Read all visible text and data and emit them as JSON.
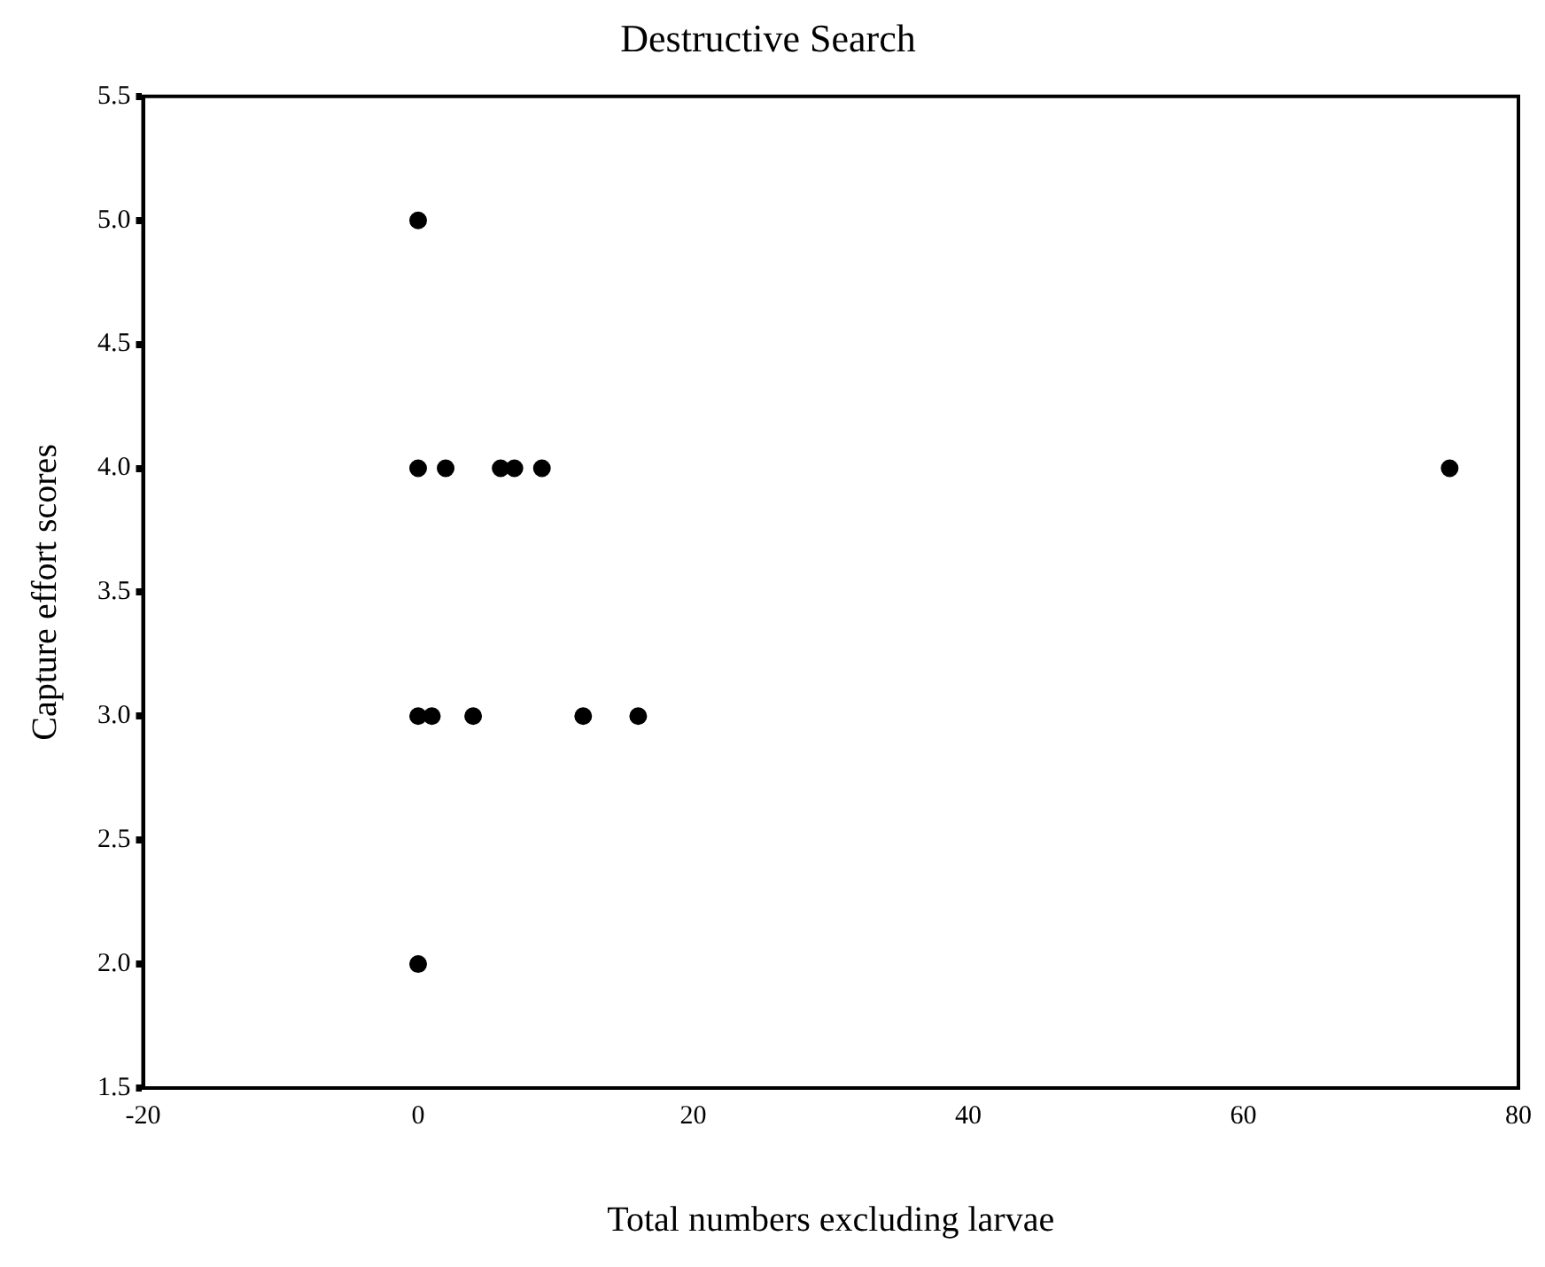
{
  "chart_data": {
    "type": "scatter",
    "title": "Destructive Search",
    "xlabel": "Total numbers excluding larvae",
    "ylabel": "Capture effort scores",
    "x": [
      0,
      0,
      2,
      6,
      7,
      9,
      75,
      0,
      1,
      4,
      12,
      16,
      0
    ],
    "values": [
      5,
      4,
      4,
      4,
      4,
      4,
      4,
      3,
      3,
      3,
      3,
      3,
      2
    ],
    "color": "#000000",
    "marker": "circle",
    "grid": false,
    "legend": false,
    "xlim": [
      -20,
      80
    ],
    "xticks": [
      -20,
      0,
      20,
      40,
      60,
      80
    ],
    "ylim": [
      1.5,
      5.5
    ],
    "yticks": [
      {
        "value": 1.5,
        "label": "1.5"
      },
      {
        "value": 2,
        "label": "2.0"
      },
      {
        "value": 2.5,
        "label": "2.5"
      },
      {
        "value": 3,
        "label": "3.0"
      },
      {
        "value": 3.5,
        "label": "3.5"
      },
      {
        "value": 4,
        "label": "4.0"
      },
      {
        "value": 4.5,
        "label": "4.5"
      },
      {
        "value": 5,
        "label": "5.0"
      },
      {
        "value": 5.5,
        "label": "5.5"
      }
    ]
  }
}
